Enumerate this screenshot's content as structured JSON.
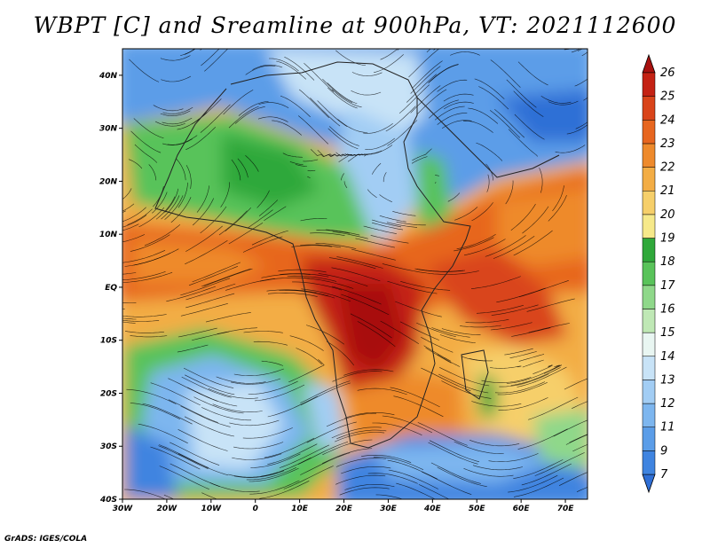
{
  "title": "WBPT [C] and Sreamline at 900hPa, VT: 2021112600",
  "credit": "GrADS: IGES/COLA",
  "map": {
    "lon_range": [
      -30,
      75
    ],
    "lat_range": [
      -40,
      45
    ],
    "lon_ticks": [
      "30W",
      "20W",
      "10W",
      "0",
      "10E",
      "20E",
      "30E",
      "40E",
      "50E",
      "60E",
      "70E"
    ],
    "lat_ticks": [
      "40S",
      "30S",
      "20S",
      "10S",
      "EQ",
      "10N",
      "20N",
      "30N",
      "40N"
    ],
    "lon_tick_values": [
      -30,
      -20,
      -10,
      0,
      10,
      20,
      30,
      40,
      50,
      60,
      70
    ],
    "lat_tick_values": [
      -40,
      -30,
      -20,
      -10,
      0,
      10,
      20,
      30,
      40
    ]
  },
  "colorbar": {
    "levels": [
      "7",
      "9",
      "11",
      "12",
      "13",
      "14",
      "15",
      "16",
      "17",
      "18",
      "19",
      "20",
      "21",
      "22",
      "23",
      "24",
      "25",
      "26"
    ],
    "colors": [
      "#2f6fd6",
      "#3f84e0",
      "#5b9de8",
      "#7db6ef",
      "#a2cdf4",
      "#c8e3f7",
      "#e9f6f2",
      "#bfe8b5",
      "#8fd88a",
      "#59c35a",
      "#2fa83a",
      "#f6e98a",
      "#f6cf6a",
      "#f3ad45",
      "#ee8a2c",
      "#e7661f",
      "#d9441a",
      "#c42214",
      "#a8110f"
    ]
  }
}
